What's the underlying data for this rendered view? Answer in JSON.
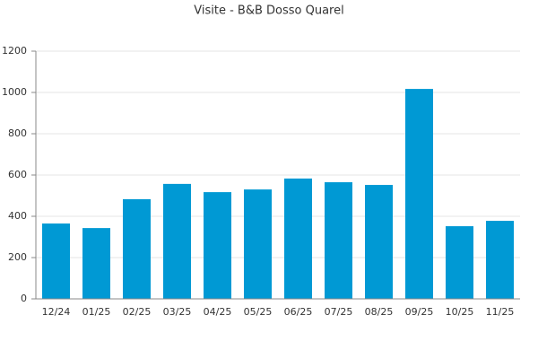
{
  "chart_data": {
    "type": "bar",
    "title": "Visite - B&B Dosso Quarel",
    "categories": [
      "12/24",
      "01/25",
      "02/25",
      "03/25",
      "04/25",
      "05/25",
      "06/25",
      "07/25",
      "08/25",
      "09/25",
      "10/25",
      "11/25"
    ],
    "values": [
      365,
      343,
      483,
      557,
      517,
      530,
      583,
      565,
      552,
      1017,
      352,
      378
    ],
    "color": "#0099d4",
    "ylim": [
      0,
      1200
    ],
    "yticks": [
      0,
      200,
      400,
      600,
      800,
      1000,
      1200
    ],
    "grid": true
  }
}
